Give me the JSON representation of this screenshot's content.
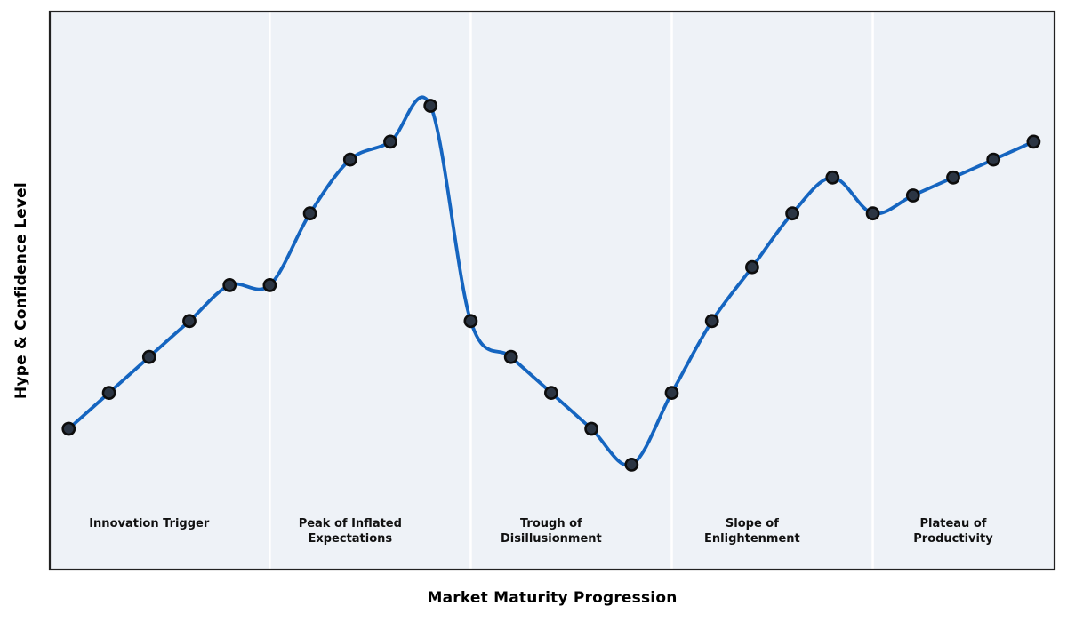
{
  "chart_data": {
    "type": "line",
    "title": "",
    "xlabel": "Market Maturity Progression",
    "ylabel": "Hype & Confidence Level",
    "x": [
      0,
      1,
      2,
      3,
      4,
      5,
      6,
      7,
      8,
      9,
      10,
      11,
      12,
      13,
      14,
      15,
      16,
      17,
      18,
      19,
      20,
      21,
      22,
      23,
      24
    ],
    "values": [
      10,
      20,
      30,
      40,
      50,
      50,
      70,
      85,
      90,
      100,
      40,
      30,
      20,
      10,
      0,
      20,
      40,
      55,
      70,
      80,
      70,
      75,
      80,
      85,
      90
    ],
    "xlim": [
      -0.45,
      24.5
    ],
    "ylim": [
      -29,
      126
    ],
    "grid": false,
    "legend": null,
    "smoothing": "spline",
    "phase_boundaries_x": [
      5,
      10,
      15,
      20
    ],
    "phases": [
      {
        "center_x": 2,
        "label_lines": [
          "Innovation Trigger"
        ]
      },
      {
        "center_x": 7,
        "label_lines": [
          "Peak of Inflated",
          "Expectations"
        ]
      },
      {
        "center_x": 12,
        "label_lines": [
          "Trough of",
          "Disillusionment"
        ]
      },
      {
        "center_x": 17,
        "label_lines": [
          "Slope of",
          "Enlightenment"
        ]
      },
      {
        "center_x": 22,
        "label_lines": [
          "Plateau of",
          "Productivity"
        ]
      }
    ],
    "colors": {
      "line": "#1565c0",
      "marker_fill": "#2b3543",
      "marker_edge": "#0d0d0d",
      "plot_bg": "#eef2f7",
      "divider": "#ffffff",
      "spine": "#212121",
      "figure_bg": "#ffffff",
      "label_text": "#111111"
    }
  }
}
